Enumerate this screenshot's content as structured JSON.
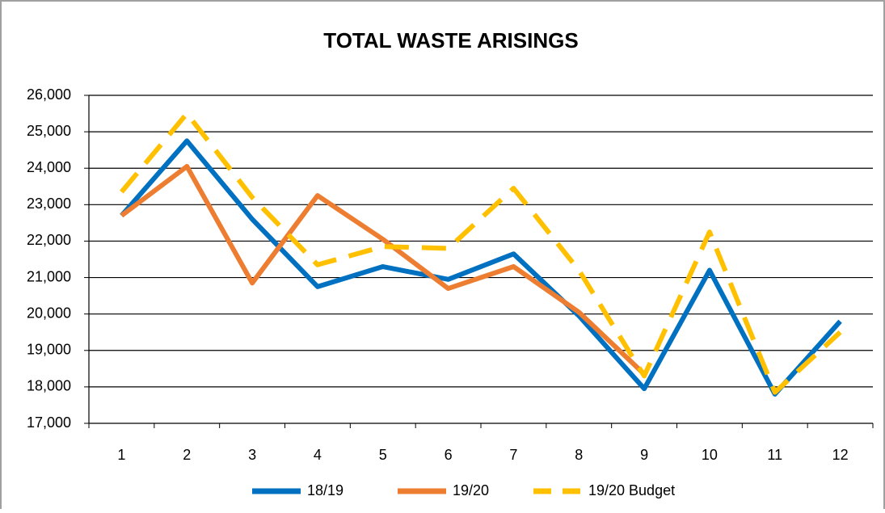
{
  "chart_data": {
    "type": "line",
    "title": "TOTAL WASTE ARISINGS",
    "categories": [
      "1",
      "2",
      "3",
      "4",
      "5",
      "6",
      "7",
      "8",
      "9",
      "10",
      "11",
      "12"
    ],
    "series": [
      {
        "name": "18/19",
        "color": "#0070c0",
        "values": [
          22700,
          24750,
          22600,
          20750,
          21300,
          20950,
          21650,
          19950,
          17950,
          21200,
          17800,
          19800
        ]
      },
      {
        "name": "19/20",
        "color": "#ed7d31",
        "values": [
          22700,
          24050,
          20850,
          23250,
          22050,
          20700,
          21300,
          20050,
          18350,
          null,
          null,
          null
        ]
      },
      {
        "name": "19/20 Budget",
        "color": "#ffc000",
        "dashed": true,
        "values": [
          23350,
          25500,
          23200,
          21350,
          21850,
          21800,
          23450,
          21200,
          18300,
          22250,
          17850,
          19500
        ]
      }
    ],
    "ylim": [
      17000,
      26000
    ],
    "yticks": [
      {
        "value": 17000,
        "label": "17,000"
      },
      {
        "value": 18000,
        "label": "18,000"
      },
      {
        "value": 19000,
        "label": "19,000"
      },
      {
        "value": 20000,
        "label": "20,000"
      },
      {
        "value": 21000,
        "label": "21,000"
      },
      {
        "value": 22000,
        "label": "22,000"
      },
      {
        "value": 23000,
        "label": "23,000"
      },
      {
        "value": 24000,
        "label": "24,000"
      },
      {
        "value": 25000,
        "label": "25,000"
      },
      {
        "value": 26000,
        "label": "26,000"
      }
    ],
    "grid": true,
    "legend": "bottom"
  }
}
